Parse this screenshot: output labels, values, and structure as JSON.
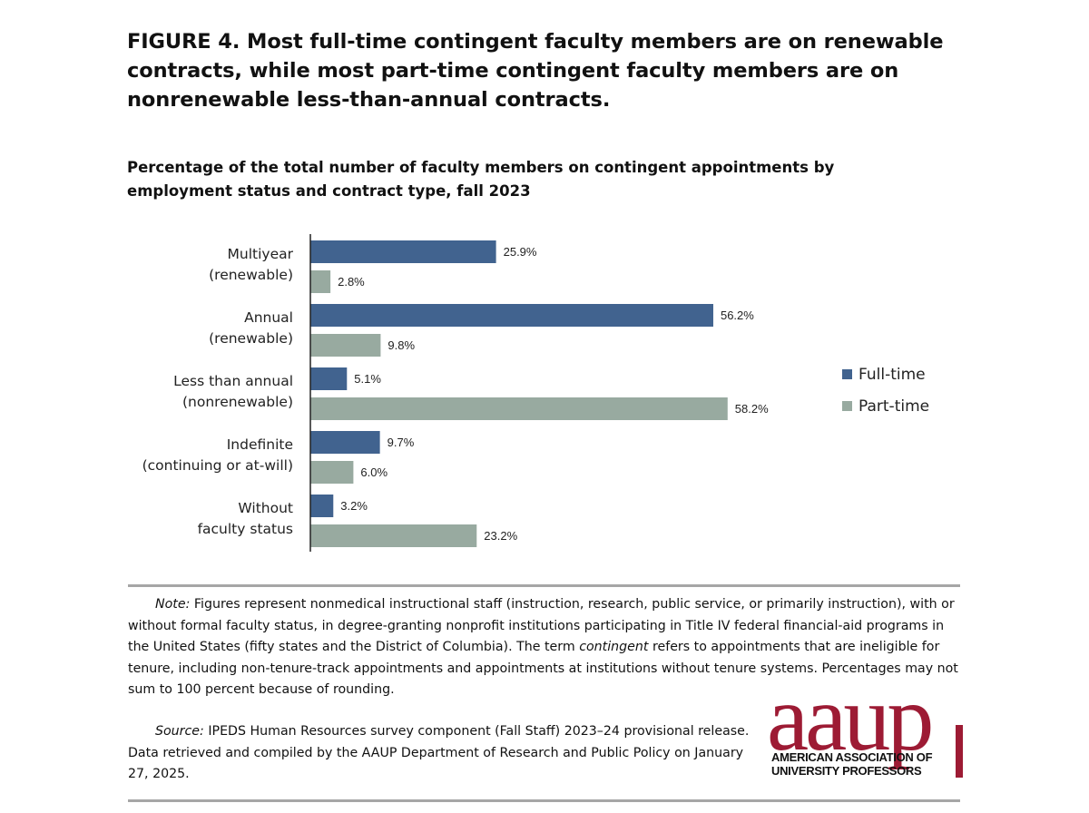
{
  "figure_title": "FIGURE 4. Most full-time contingent faculty members are on renewable contracts, while most part-time contingent faculty members are on nonrenewable less-than-annual contracts.",
  "chart_data": {
    "type": "bar",
    "orientation": "horizontal",
    "title": "Percentage of the total number of faculty members on contingent appointments by employment status and contract type, fall 2023",
    "categories": [
      [
        "Multiyear",
        "(renewable)"
      ],
      [
        "Annual",
        "(renewable)"
      ],
      [
        "Less than annual",
        "(nonrenewable)"
      ],
      [
        "Indefinite",
        "(continuing or at-will)"
      ],
      [
        "Without",
        "faculty status"
      ]
    ],
    "series": [
      {
        "name": "Full-time",
        "color": "#41638f",
        "values": [
          25.9,
          56.2,
          5.1,
          9.7,
          3.2
        ],
        "labels": [
          "25.9%",
          "56.2%",
          "5.1%",
          "9.7%",
          "3.2%"
        ]
      },
      {
        "name": "Part-time",
        "color": "#98aaa0",
        "values": [
          2.8,
          9.8,
          58.2,
          6.0,
          23.2
        ],
        "labels": [
          "2.8%",
          "9.8%",
          "58.2%",
          "6.0%",
          "23.2%"
        ]
      }
    ],
    "xlim": [
      0,
      60
    ],
    "grid": false,
    "legend_position": "right"
  },
  "note": {
    "lead": "Note:",
    "text_before": " Figures represent nonmedical instructional staff (instruction, research, public service, or primarily instruction), with or without formal faculty status, in degree-granting nonprofit institutions participating in Title IV federal financial-aid programs in the United States (fifty states and the District of Columbia). The term ",
    "term": "contingent",
    "text_after": " refers to appointments that are ineligible for tenure, including non-tenure-track appointments and appointments at institutions without tenure systems. Percentages may not sum to 100 percent because of rounding."
  },
  "source": {
    "lead": "Source:",
    "text": " IPEDS Human Resources survey component (Fall Staff) 2023–24 provisional release. Data retrieved and compiled by the AAUP Department of Research and Public Policy on January 27, 2025."
  },
  "logo": {
    "word": "aaup",
    "line1": "AMERICAN ASSOCIATION OF",
    "line2": "UNIVERSITY PROFESSORS",
    "color": "#9d1b34"
  }
}
